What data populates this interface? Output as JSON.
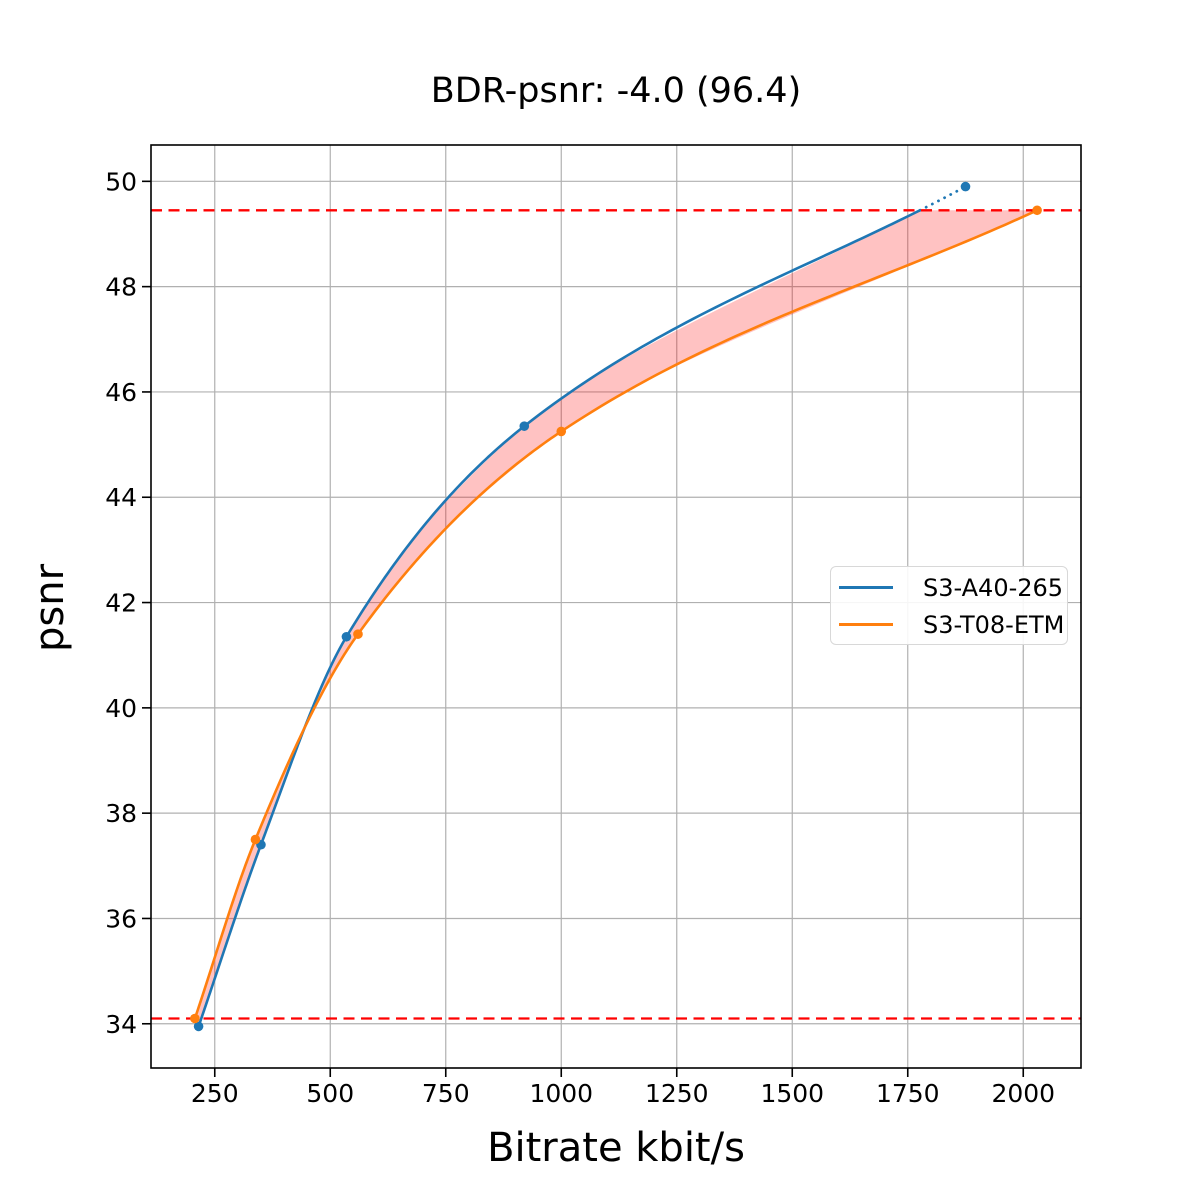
{
  "chart_data": {
    "type": "line",
    "title": "BDR-psnr: -4.0 (96.4)",
    "xlabel": "Bitrate kbit/s",
    "ylabel": "psnr",
    "xlim": [
      112,
      2125
    ],
    "ylim": [
      33.16,
      50.69
    ],
    "xticks": [
      250,
      500,
      750,
      1000,
      1250,
      1500,
      1750,
      2000
    ],
    "yticks": [
      34,
      36,
      38,
      40,
      42,
      44,
      46,
      48,
      50
    ],
    "grid": true,
    "grid_color": "#b0b0b0",
    "legend_position": "center-right",
    "series": [
      {
        "name": "S3-A40-265",
        "color": "#1f77b4",
        "marker": "circle",
        "x": [
          215,
          350,
          535,
          920,
          1875
        ],
        "y": [
          33.95,
          37.4,
          41.35,
          45.35,
          49.9
        ],
        "note": "solid curve clipped at upper BD bound, dotted extrapolation to last point"
      },
      {
        "name": "S3-T08-ETM",
        "color": "#ff7f0e",
        "marker": "circle",
        "x": [
          207,
          338,
          560,
          1000,
          2030
        ],
        "y": [
          34.1,
          37.5,
          41.4,
          45.25,
          49.45
        ]
      }
    ],
    "bd_bounds": {
      "color": "#ff0000",
      "style": "dashed",
      "lower_psnr": 34.1,
      "upper_psnr": 49.45
    },
    "shaded_area": {
      "color": "rgba(255,0,0,0.24)",
      "between": [
        "S3-A40-265",
        "S3-T08-ETM"
      ],
      "psnr_range": [
        34.1,
        49.45
      ]
    }
  }
}
